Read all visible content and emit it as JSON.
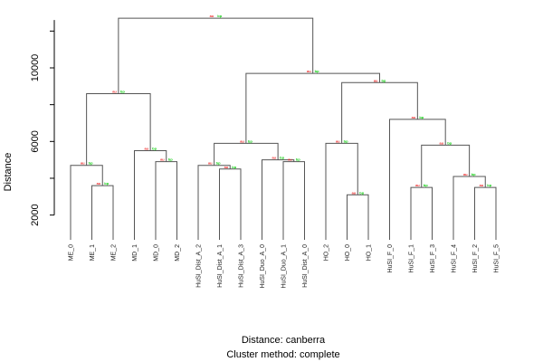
{
  "chart_data": {
    "type": "dendrogram",
    "ylabel": "Distance",
    "yticks": [
      2000,
      6000,
      10000
    ],
    "ylim": [
      900,
      13000
    ],
    "caption_distance": "Distance:  canberra",
    "caption_method": "Cluster method: complete",
    "edge_label_au": "au",
    "edge_label_bp": "bp",
    "leaves": [
      "ME_0",
      "ME_1",
      "ME_2",
      "MD_1",
      "MD_0",
      "MD_2",
      "HuSI_Dist_A_2",
      "HuSI_Dist_A_1",
      "HuSI_Dist_A_3",
      "HuSI_Duo_A_0",
      "HuSI_Duo_A_1",
      "HuSI_Dist_A_0",
      "HO_2",
      "HO_0",
      "HO_1",
      "HuSI_F_0",
      "HuSI_F_1",
      "HuSI_F_3",
      "HuSI_F_4",
      "HuSI_F_2",
      "HuSI_F_5"
    ],
    "merges": [
      {
        "id": "n1",
        "left": "ME_1",
        "right": "ME_2",
        "height": 3600
      },
      {
        "id": "n2",
        "left": "ME_0",
        "right": "n1",
        "height": 4700
      },
      {
        "id": "n3",
        "left": "MD_0",
        "right": "MD_2",
        "height": 4900
      },
      {
        "id": "n4",
        "left": "MD_1",
        "right": "n3",
        "height": 5500
      },
      {
        "id": "n5",
        "left": "n2",
        "right": "n4",
        "height": 8600
      },
      {
        "id": "n6",
        "left": "HuSI_Dist_A_1",
        "right": "HuSI_Dist_A_3",
        "height": 4500
      },
      {
        "id": "n7",
        "left": "HuSI_Dist_A_2",
        "right": "n6",
        "height": 4700
      },
      {
        "id": "n8",
        "left": "HuSI_Duo_A_1",
        "right": "HuSI_Dist_A_0",
        "height": 4900
      },
      {
        "id": "n9",
        "left": "HuSI_Duo_A_0",
        "right": "n8",
        "height": 5000
      },
      {
        "id": "n10",
        "left": "n7",
        "right": "n9",
        "height": 5900
      },
      {
        "id": "n11",
        "left": "HO_0",
        "right": "HO_1",
        "height": 3100
      },
      {
        "id": "n12",
        "left": "HO_2",
        "right": "n11",
        "height": 5900
      },
      {
        "id": "n13",
        "left": "HuSI_F_1",
        "right": "HuSI_F_3",
        "height": 3500
      },
      {
        "id": "n14",
        "left": "HuSI_F_2",
        "right": "HuSI_F_5",
        "height": 3500
      },
      {
        "id": "n15",
        "left": "HuSI_F_4",
        "right": "n14",
        "height": 4100
      },
      {
        "id": "n16",
        "left": "n13",
        "right": "n15",
        "height": 5800
      },
      {
        "id": "n17",
        "left": "HuSI_F_0",
        "right": "n16",
        "height": 7200
      },
      {
        "id": "n18",
        "left": "n12",
        "right": "n17",
        "height": 9200
      },
      {
        "id": "n19",
        "left": "n10",
        "right": "n18",
        "height": 9700
      },
      {
        "id": "n20",
        "left": "n5",
        "right": "n19",
        "height": 12700
      }
    ]
  }
}
